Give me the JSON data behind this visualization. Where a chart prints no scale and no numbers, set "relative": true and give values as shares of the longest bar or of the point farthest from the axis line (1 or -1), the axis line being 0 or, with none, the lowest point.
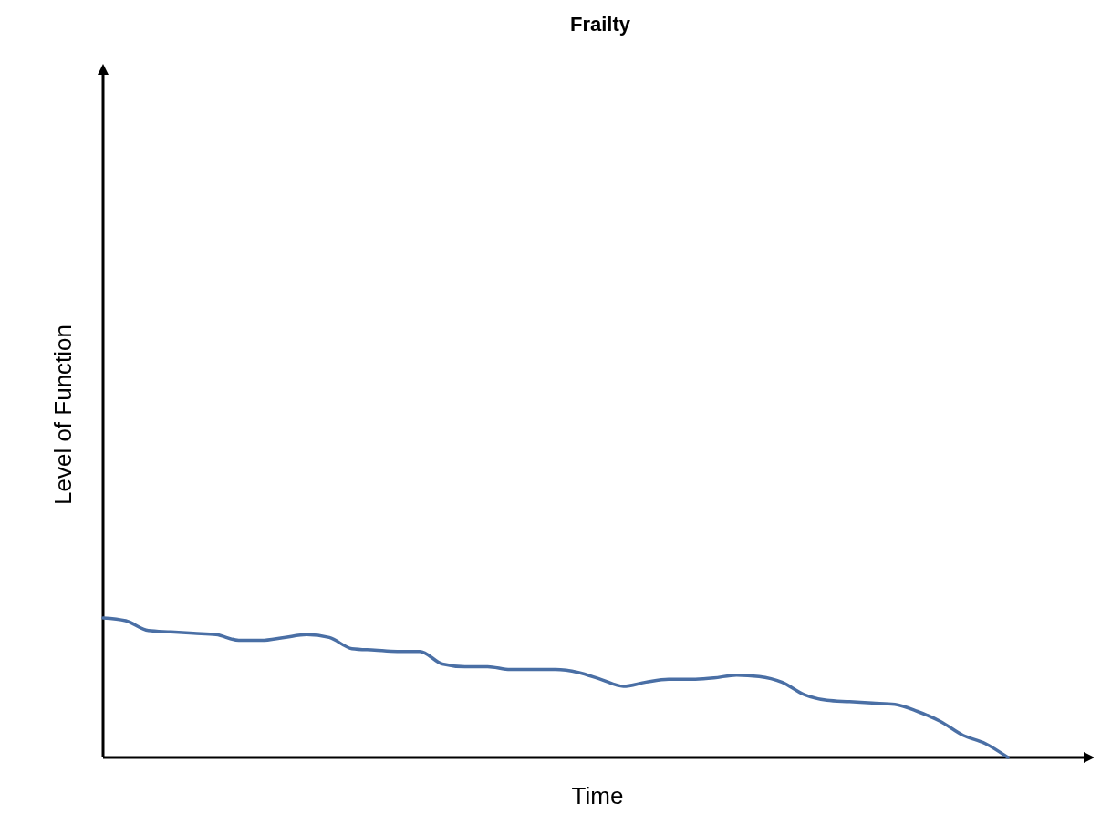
{
  "chart_data": {
    "type": "line",
    "title": "Frailty",
    "xlabel": "Time",
    "ylabel": "Level of Function",
    "relative": true,
    "categories": [
      null,
      null,
      null,
      null,
      null,
      null,
      null,
      null,
      null,
      null,
      null,
      null,
      null,
      null,
      null,
      null,
      null,
      null,
      null,
      null,
      null,
      null,
      null,
      null,
      null,
      null,
      null,
      null,
      null,
      null,
      null,
      null,
      null,
      null,
      null,
      null,
      null,
      null,
      null,
      null,
      null
    ],
    "series": [
      {
        "color": "#4a6fa5",
        "values": [
          1,
          0.98,
          0.91,
          0.9,
          0.89,
          0.88,
          0.84,
          0.84,
          0.86,
          0.88,
          0.86,
          0.78,
          0.77,
          0.76,
          0.76,
          0.67,
          0.65,
          0.65,
          0.63,
          0.63,
          0.63,
          0.61,
          0.56,
          0.51,
          0.54,
          0.56,
          0.56,
          0.57,
          0.59,
          0.58,
          0.54,
          0.45,
          0.41,
          0.4,
          0.39,
          0.38,
          0.33,
          0.26,
          0.16,
          0.1,
          0
        ]
      }
    ]
  }
}
